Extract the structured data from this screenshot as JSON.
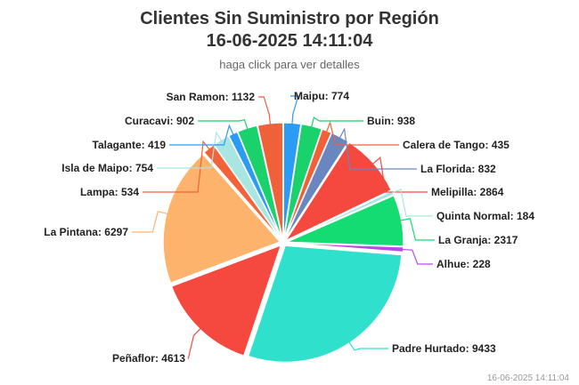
{
  "header": {
    "title_line1": "Clientes Sin Suministro por Región",
    "title_line2": "16-06-2025 14:11:04",
    "subtitle": "haga click para ver detalles"
  },
  "footer": {
    "timestamp": "16-06-2025 14:11:04"
  },
  "chart_data": {
    "type": "pie",
    "title": "Clientes Sin Suministro por Región",
    "subtitle": "haga click para ver detalles",
    "slices": [
      {
        "name": "Maipu",
        "value": 774,
        "color": "#2b9bf4"
      },
      {
        "name": "Buin",
        "value": 938,
        "color": "#19d26b"
      },
      {
        "name": "Calera de Tango",
        "value": 435,
        "color": "#f0613a"
      },
      {
        "name": "La Florida",
        "value": 832,
        "color": "#6a86c0"
      },
      {
        "name": "Melipilla",
        "value": 2864,
        "color": "#f5483e"
      },
      {
        "name": "Quinta Normal",
        "value": 184,
        "color": "#a8e6e1"
      },
      {
        "name": "La Granja",
        "value": 2317,
        "color": "#15dc72"
      },
      {
        "name": "Alhue",
        "value": 228,
        "color": "#b74ae6"
      },
      {
        "name": "Padre Hurtado",
        "value": 9433,
        "color": "#2fe0cc"
      },
      {
        "name": "Peñaflor",
        "value": 4613,
        "color": "#f5483e"
      },
      {
        "name": "La Pintana",
        "value": 6297,
        "color": "#fdb36b"
      },
      {
        "name": "Lampa",
        "value": 534,
        "color": "#f4623a"
      },
      {
        "name": "Isla de Maipo",
        "value": 754,
        "color": "#a9e5e1"
      },
      {
        "name": "Talagante",
        "value": 419,
        "color": "#2b9bf4"
      },
      {
        "name": "Curacavi",
        "value": 902,
        "color": "#19d26b"
      },
      {
        "name": "San Ramon",
        "value": 1132,
        "color": "#f0613a"
      }
    ]
  }
}
